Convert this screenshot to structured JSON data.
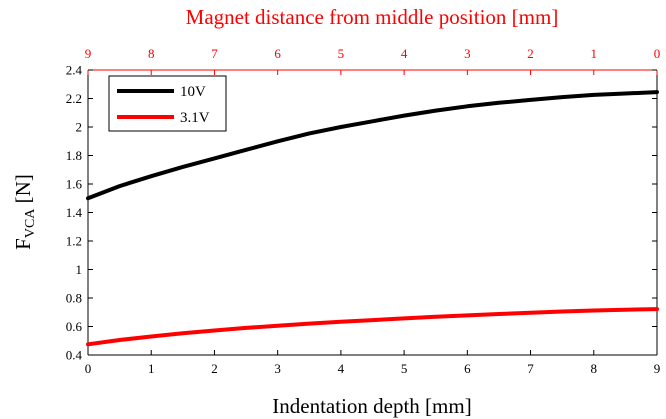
{
  "chart_data": {
    "type": "line",
    "xlabel": "Indentation depth [mm]",
    "ylabel_main": "F",
    "ylabel_sub": "VCA",
    "ylabel_unit": " [N]",
    "top_xlabel": "Magnet distance from middle position [mm]",
    "xlim": [
      0,
      9
    ],
    "ylim": [
      0.4,
      2.4
    ],
    "x_ticks": [
      "0",
      "1",
      "2",
      "3",
      "4",
      "5",
      "6",
      "7",
      "8",
      "9"
    ],
    "top_x_ticks": [
      "9",
      "8",
      "7",
      "6",
      "5",
      "4",
      "3",
      "2",
      "1",
      "0"
    ],
    "y_ticks": [
      "0.4",
      "0.6",
      "0.8",
      "1",
      "1.2",
      "1.4",
      "1.6",
      "1.8",
      "2",
      "2.2",
      "2.4"
    ],
    "legend_position": "top-left",
    "grid": false,
    "x": [
      0,
      0.5,
      1,
      1.5,
      2,
      2.5,
      3,
      3.5,
      4,
      4.5,
      5,
      5.5,
      6,
      6.5,
      7,
      7.5,
      8,
      8.5,
      9
    ],
    "series": [
      {
        "name": "10V",
        "color": "#000000",
        "values": [
          1.5,
          1.585,
          1.655,
          1.72,
          1.78,
          1.84,
          1.9,
          1.955,
          2.0,
          2.04,
          2.08,
          2.115,
          2.145,
          2.17,
          2.19,
          2.21,
          2.225,
          2.235,
          2.245
        ]
      },
      {
        "name": "3.1V",
        "color": "#ff0000",
        "values": [
          0.475,
          0.505,
          0.53,
          0.552,
          0.572,
          0.59,
          0.605,
          0.62,
          0.633,
          0.645,
          0.657,
          0.668,
          0.678,
          0.688,
          0.697,
          0.705,
          0.712,
          0.718,
          0.722
        ]
      }
    ]
  },
  "colors": {
    "primary_axis": "#000000",
    "secondary_axis": "#ff0000"
  }
}
